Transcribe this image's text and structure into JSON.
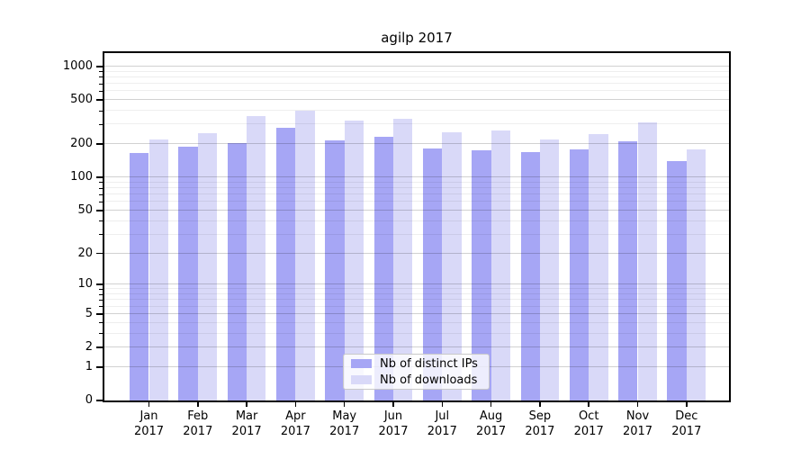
{
  "chart_data": {
    "type": "bar",
    "title": "agilp 2017",
    "categories": [
      "Jan",
      "Feb",
      "Mar",
      "Apr",
      "May",
      "Jun",
      "Jul",
      "Aug",
      "Sep",
      "Oct",
      "Nov",
      "Dec"
    ],
    "category_year_line": "2017",
    "series": [
      {
        "name": "Nb of distinct IPs",
        "color": "#a6a6f5",
        "values": [
          165,
          190,
          205,
          282,
          218,
          232,
          183,
          175,
          170,
          178,
          211,
          140
        ]
      },
      {
        "name": "Nb of downloads",
        "color": "#d9d9f8",
        "values": [
          220,
          252,
          356,
          398,
          327,
          341,
          256,
          265,
          220,
          248,
          312,
          178
        ]
      }
    ],
    "xlabel": "",
    "ylabel": "",
    "yscale": "log1p",
    "ytick_labels": [
      "0",
      "1",
      "2",
      "5",
      "10",
      "20",
      "50",
      "100",
      "200",
      "500",
      "1000"
    ],
    "yticks": [
      0,
      1,
      2,
      5,
      10,
      20,
      50,
      100,
      200,
      500,
      1000
    ],
    "yminor_gridlines": [
      3,
      4,
      6,
      7,
      8,
      9,
      30,
      40,
      60,
      70,
      80,
      90,
      300,
      400,
      600,
      700,
      800,
      900
    ],
    "ylim": [
      0,
      1320
    ],
    "grid": true,
    "legend_position": "lower-center-inside",
    "colors": {
      "grid_major": "#d4d4d4",
      "grid_minor": "#efefef",
      "axis": "#000000",
      "background": "#ffffff"
    }
  }
}
